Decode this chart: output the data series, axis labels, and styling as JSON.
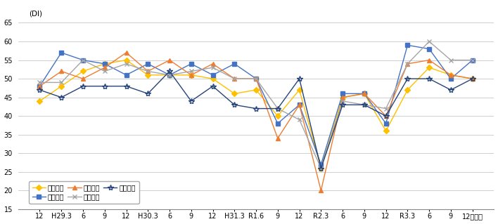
{
  "x_labels_plain": [
    "12",
    "H29.3",
    "6",
    "9",
    "12",
    "H30.3",
    "6",
    "9",
    "12",
    "H31.3",
    "R1.6",
    "9",
    "12",
    "R2.3",
    "6",
    "9",
    "12",
    "R3.3",
    "6",
    "9",
    "12"
  ],
  "last_xlabel": "（月）",
  "series": {
    "県北地域": {
      "color": "#ffc000",
      "marker": "D",
      "markersize": 4,
      "values": [
        44,
        48,
        52,
        54,
        55,
        51,
        51,
        51,
        50,
        46,
        47,
        40,
        47,
        26,
        45,
        46,
        36,
        47,
        53,
        51,
        50
      ]
    },
    "県央地域": {
      "color": "#4472c4",
      "marker": "s",
      "markersize": 4,
      "values": [
        48,
        57,
        55,
        54,
        51,
        54,
        51,
        54,
        51,
        54,
        50,
        38,
        43,
        27,
        46,
        46,
        38,
        59,
        58,
        50,
        55
      ]
    },
    "鹿行地域": {
      "color": "#ed7d31",
      "marker": "^",
      "markersize": 5,
      "values": [
        48,
        52,
        50,
        53,
        57,
        52,
        55,
        51,
        54,
        50,
        50,
        34,
        43,
        20,
        45,
        46,
        40,
        54,
        55,
        51,
        50
      ]
    },
    "県南地域": {
      "color": "#a5a5a5",
      "marker": "x",
      "markersize": 5,
      "values": [
        49,
        49,
        55,
        52,
        54,
        52,
        51,
        52,
        53,
        50,
        50,
        42,
        39,
        26,
        44,
        43,
        42,
        54,
        60,
        55,
        55
      ]
    },
    "県西地域": {
      "color": "#264478",
      "marker": "*",
      "markersize": 6,
      "values": [
        47,
        45,
        48,
        48,
        48,
        46,
        52,
        44,
        48,
        43,
        42,
        42,
        50,
        26,
        43,
        43,
        40,
        50,
        50,
        47,
        50
      ]
    }
  },
  "ylim": [
    15,
    65
  ],
  "yticks": [
    15,
    20,
    25,
    30,
    35,
    40,
    45,
    50,
    55,
    60,
    65
  ],
  "ylabel": "(DI)",
  "background_color": "#ffffff",
  "legend_order": [
    "県北地域",
    "県央地域",
    "鹿行地域",
    "県南地域",
    "県西地域"
  ],
  "linewidth": 1.0,
  "tick_fontsize": 7,
  "legend_fontsize": 7
}
